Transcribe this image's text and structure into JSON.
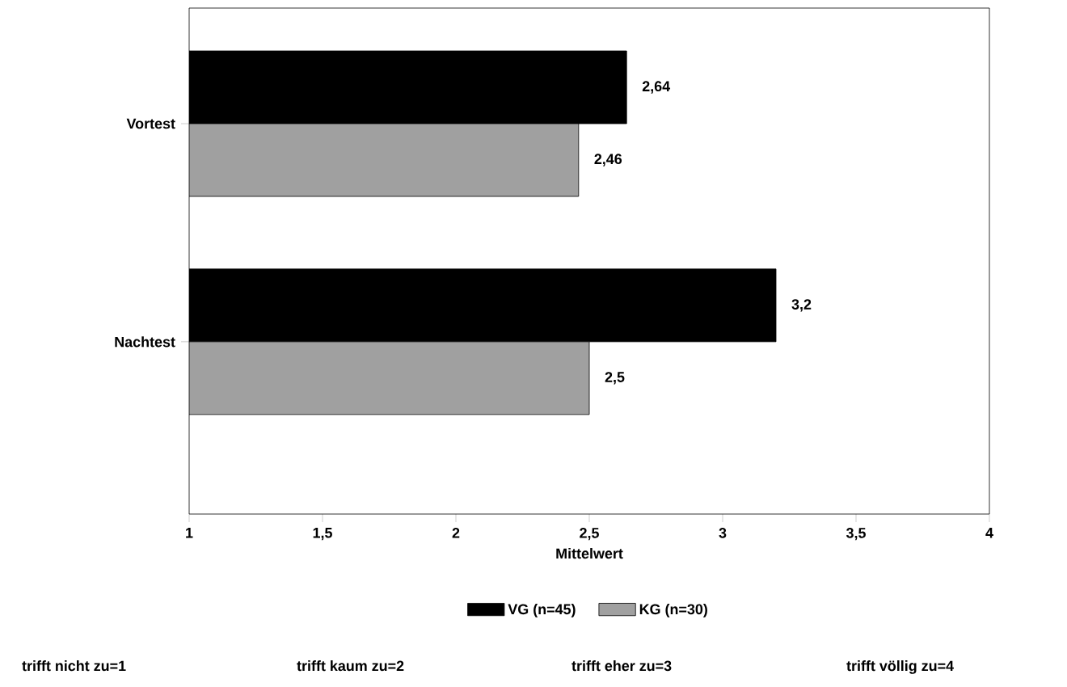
{
  "chart_data": {
    "type": "bar",
    "orientation": "horizontal",
    "categories": [
      "Vortest",
      "Nachtest"
    ],
    "series": [
      {
        "name": "VG (n=45)",
        "color": "#000000",
        "values": [
          2.64,
          3.2
        ],
        "value_labels": [
          "2,64",
          "3,2"
        ]
      },
      {
        "name": "KG (n=30)",
        "color": "#a0a0a0",
        "values": [
          2.46,
          2.5
        ],
        "value_labels": [
          "2,46",
          "2,5"
        ]
      }
    ],
    "xlim": [
      1,
      4
    ],
    "xticks": [
      1,
      {
        "value": 1.5,
        "label": "1,5"
      },
      2,
      {
        "value": 2.5,
        "label": "2,5"
      },
      3,
      {
        "value": 3.5,
        "label": "3,5"
      },
      4
    ],
    "xlabel": "Mittelwert",
    "legend": "bottom",
    "annotations": [
      "trifft nicht zu=1",
      "trifft kaum zu=2",
      "trifft eher zu=3",
      "trifft völlig zu=4"
    ]
  }
}
